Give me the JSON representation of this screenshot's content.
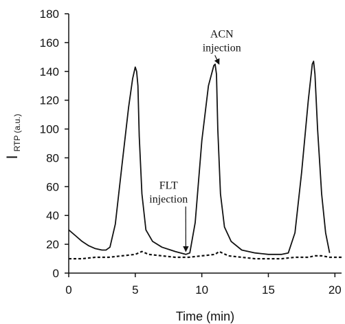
{
  "chart_data": {
    "type": "line",
    "xlabel": "Time (min)",
    "ylabel": {
      "main": "I",
      "sub": "RTP (a.u.)"
    },
    "xlim": [
      0,
      20.5
    ],
    "ylim": [
      0,
      180
    ],
    "xticks": [
      0,
      5,
      10,
      15,
      20
    ],
    "yticks": [
      0,
      20,
      40,
      60,
      80,
      100,
      120,
      140,
      160,
      180
    ],
    "grid": false,
    "legend": "none",
    "series": [
      {
        "style": "solid",
        "color": "#111111",
        "x": [
          0,
          0.5,
          1,
          1.5,
          2,
          2.5,
          2.8,
          3.1,
          3.5,
          4.0,
          4.5,
          4.8,
          5.0,
          5.1,
          5.2,
          5.3,
          5.5,
          5.8,
          6.3,
          7,
          8,
          8.8,
          9.1,
          9.5,
          10,
          10.5,
          10.9,
          11.0,
          11.1,
          11.2,
          11.4,
          11.7,
          12.2,
          13,
          14,
          15,
          16,
          16.5,
          17,
          17.5,
          18,
          18.3,
          18.4,
          18.5,
          18.7,
          19.0,
          19.3,
          19.6
        ],
        "y": [
          30,
          26,
          22,
          19,
          17,
          16,
          16,
          18,
          34,
          75,
          115,
          135,
          143,
          140,
          130,
          95,
          55,
          30,
          22,
          18,
          15,
          13,
          14,
          35,
          92,
          130,
          144,
          145,
          138,
          100,
          55,
          32,
          22,
          16,
          14,
          13,
          13,
          14,
          28,
          70,
          120,
          145,
          147,
          138,
          100,
          55,
          28,
          14
        ]
      },
      {
        "style": "dashed",
        "color": "#111111",
        "x": [
          0,
          1,
          2,
          3,
          4,
          5,
          5.5,
          6,
          7,
          8,
          9,
          10,
          11,
          11.3,
          12,
          13,
          14,
          15,
          16,
          17,
          18,
          18.5,
          19,
          19.6,
          20,
          20.5
        ],
        "y": [
          10,
          10,
          11,
          11,
          12,
          13,
          15,
          13,
          12,
          11,
          11,
          12,
          13,
          15,
          12,
          11,
          10,
          10,
          10,
          11,
          11,
          12,
          12,
          11,
          11,
          11
        ]
      }
    ],
    "annotations": [
      {
        "lines": [
          "ACN",
          "injection"
        ],
        "x": 11.5,
        "y": 155,
        "arrow_to": [
          11.3,
          145
        ]
      },
      {
        "lines": [
          "FLT",
          "injection"
        ],
        "x": 7.5,
        "y": 50,
        "arrow_to": [
          8.8,
          15
        ]
      }
    ]
  }
}
